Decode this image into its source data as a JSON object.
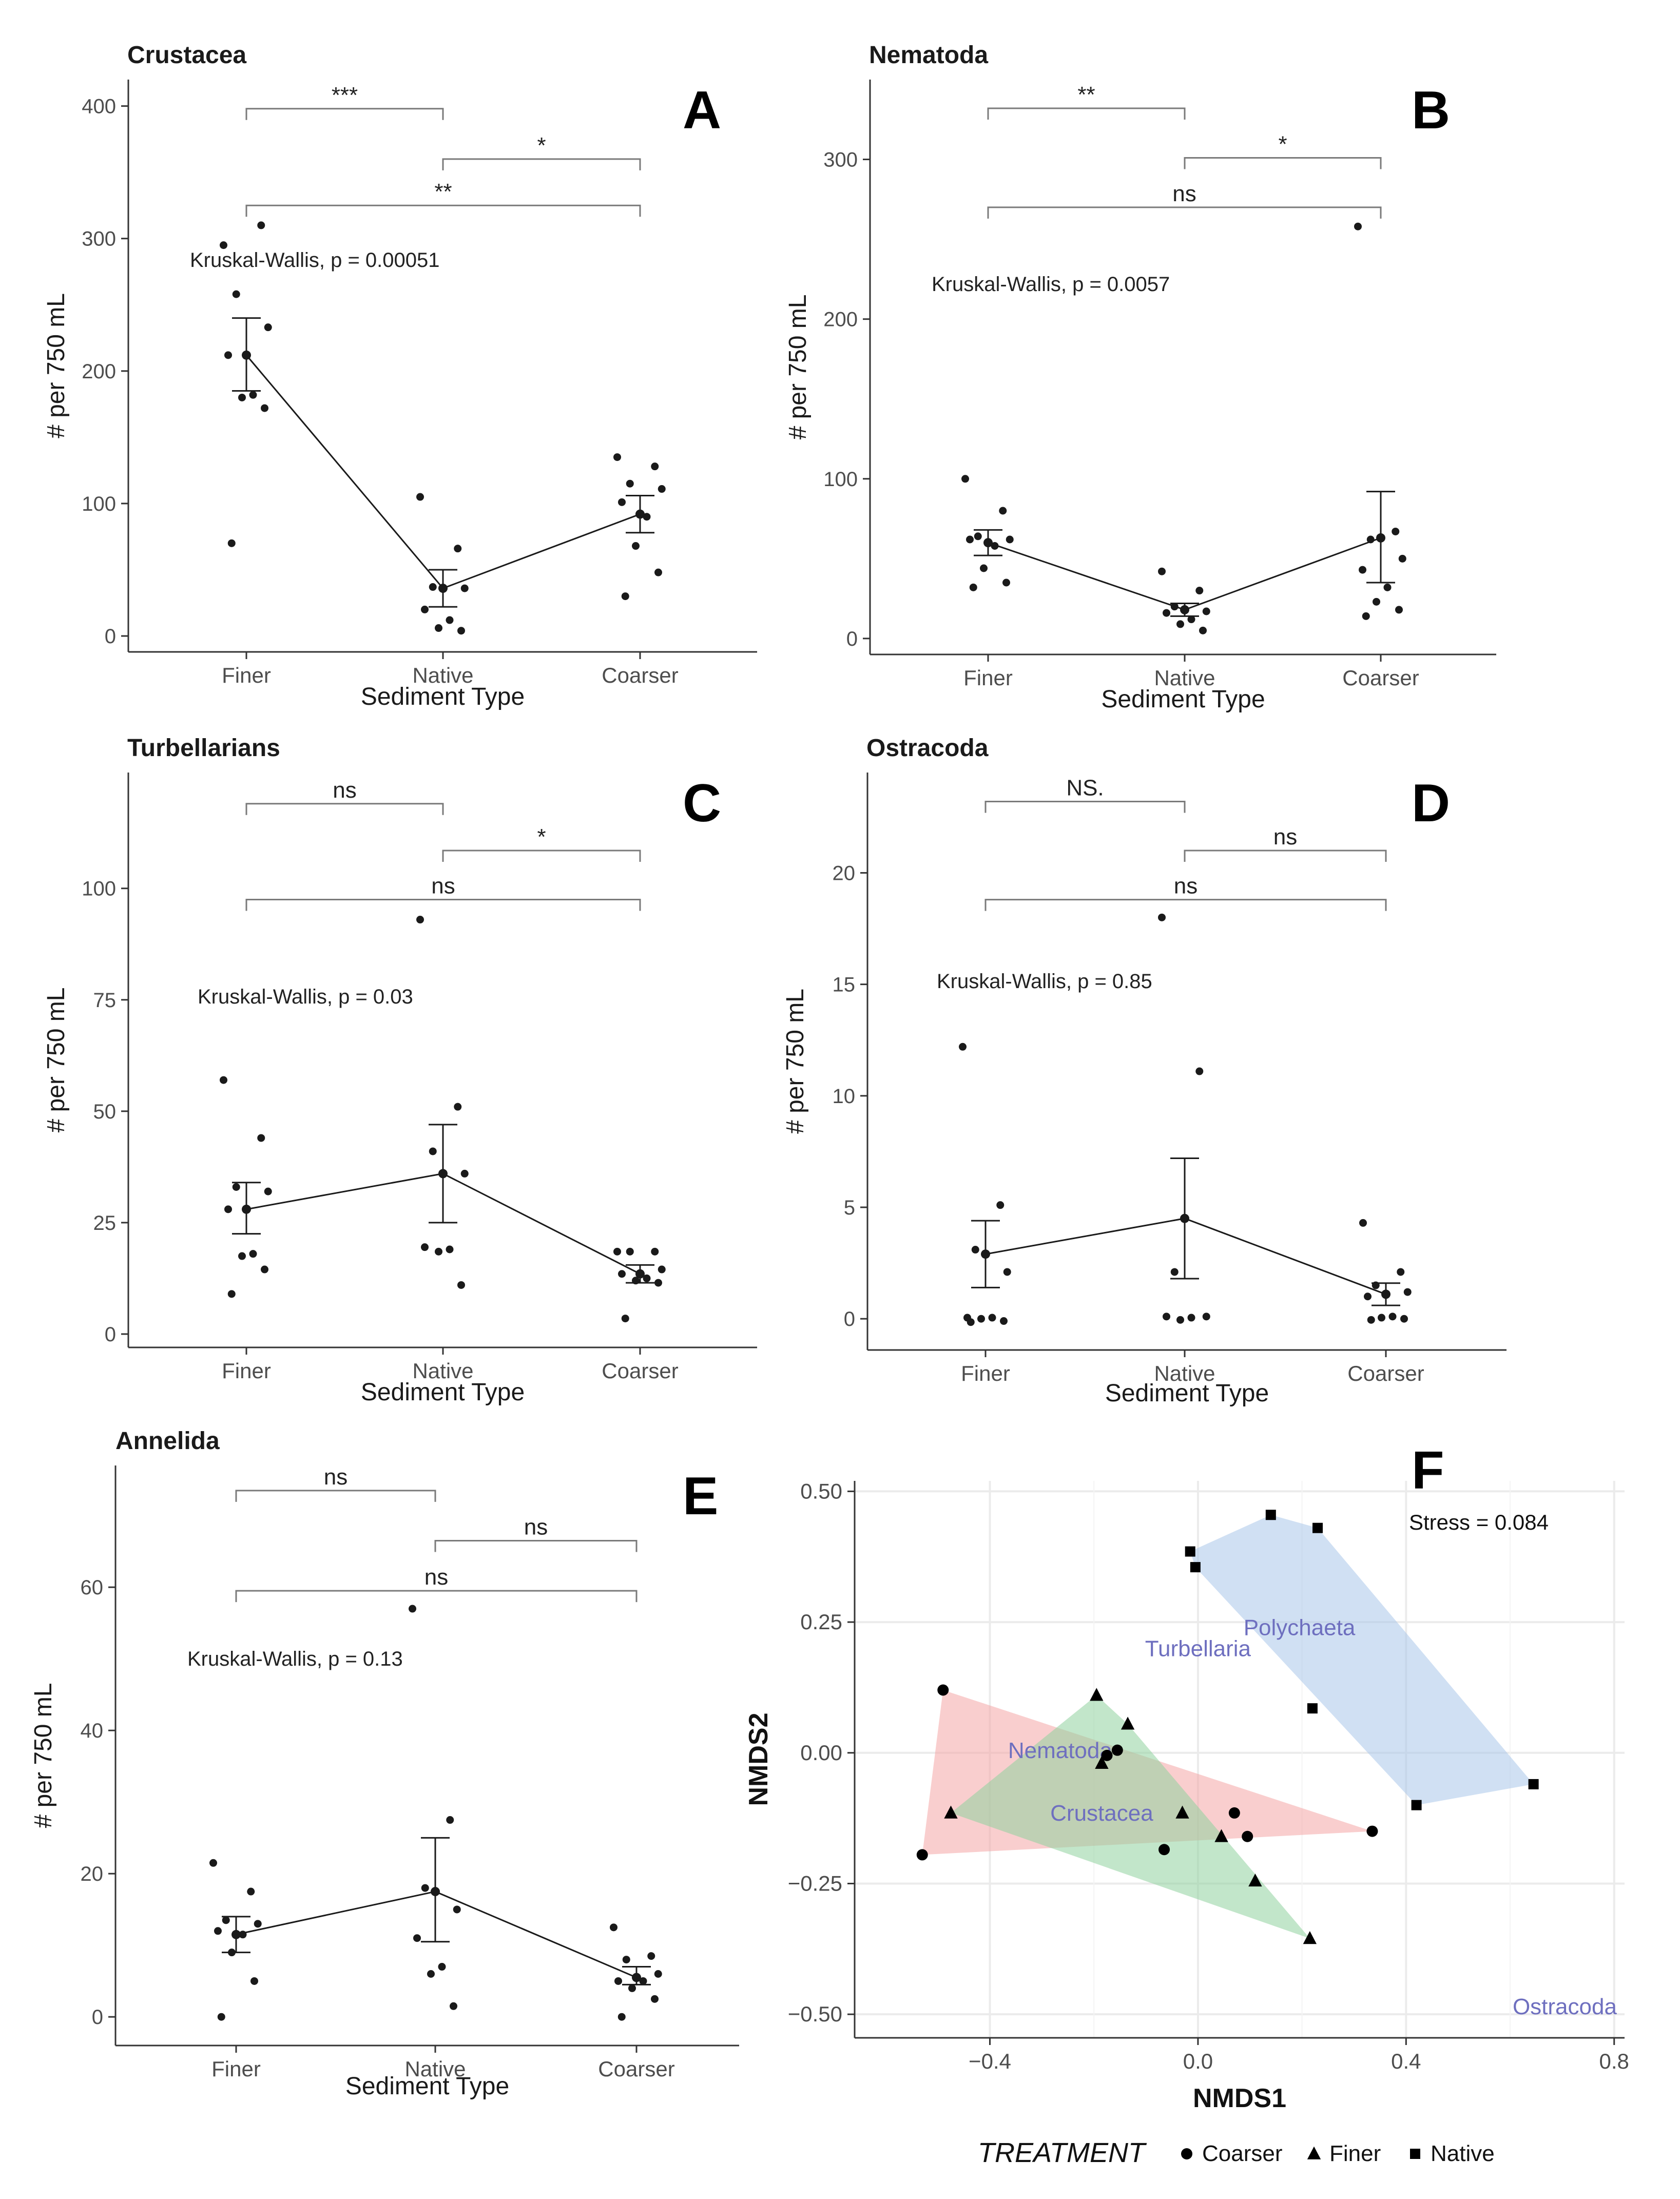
{
  "chart_data": [
    {
      "type": "scatter",
      "panel_letter": "A",
      "title": "Crustacea",
      "xlabel": "Sediment Type",
      "ylabel": "# per 750 mL",
      "categories": [
        "Finer",
        "Native",
        "Coarser"
      ],
      "ylim": [
        -12,
        420
      ],
      "yticks": [
        0,
        100,
        200,
        300,
        400
      ],
      "kruskal_wallis": "Kruskal-Wallis, p = 0.00051",
      "points": {
        "Finer": [
          295,
          310,
          258,
          233,
          212,
          182,
          180,
          172,
          70
        ],
        "Native": [
          105,
          66,
          37,
          36,
          20,
          12,
          6,
          4
        ],
        "Coarser": [
          135,
          128,
          115,
          111,
          101,
          90,
          68,
          48,
          30
        ]
      },
      "mean": [
        212,
        36,
        92
      ],
      "error": [
        [
          185,
          240
        ],
        [
          22,
          50
        ],
        [
          78,
          106
        ]
      ],
      "brackets": [
        {
          "from": "Finer",
          "to": "Native",
          "label": "***",
          "y": 398
        },
        {
          "from": "Native",
          "to": "Coarser",
          "label": "*",
          "y": 360
        },
        {
          "from": "Finer",
          "to": "Coarser",
          "label": "**",
          "y": 325
        }
      ]
    },
    {
      "type": "scatter",
      "panel_letter": "B",
      "title": "Nematoda",
      "xlabel": "Sediment Type",
      "ylabel": "# per 750 mL",
      "categories": [
        "Finer",
        "Native",
        "Coarser"
      ],
      "ylim": [
        -10,
        350
      ],
      "yticks": [
        0,
        100,
        200,
        300
      ],
      "kruskal_wallis": "Kruskal-Wallis, p = 0.0057",
      "points": {
        "Finer": [
          100,
          80,
          64,
          62,
          62,
          58,
          44,
          35,
          32
        ],
        "Native": [
          42,
          30,
          20,
          17,
          16,
          12,
          9,
          5
        ],
        "Coarser": [
          258,
          67,
          62,
          50,
          43,
          32,
          23,
          18,
          14
        ]
      },
      "mean": [
        60,
        18,
        63
      ],
      "error": [
        [
          52,
          68
        ],
        [
          14,
          22
        ],
        [
          35,
          92
        ]
      ],
      "brackets": [
        {
          "from": "Finer",
          "to": "Native",
          "label": "**",
          "y": 332
        },
        {
          "from": "Native",
          "to": "Coarser",
          "label": "*",
          "y": 301
        },
        {
          "from": "Finer",
          "to": "Coarser",
          "label": "ns",
          "y": 270
        }
      ]
    },
    {
      "type": "scatter",
      "panel_letter": "C",
      "title": "Turbellarians",
      "xlabel": "Sediment Type",
      "ylabel": "# per 750 mL",
      "categories": [
        "Finer",
        "Native",
        "Coarser"
      ],
      "ylim": [
        -3,
        126
      ],
      "yticks": [
        0,
        25,
        50,
        75,
        100
      ],
      "kruskal_wallis": "Kruskal-Wallis, p = 0.03",
      "points": {
        "Finer": [
          57,
          44,
          33,
          32,
          28,
          18,
          17.5,
          14.5,
          9
        ],
        "Native": [
          93,
          51,
          41,
          36,
          19.5,
          19,
          18.5,
          11
        ],
        "Coarser": [
          18.5,
          18.5,
          18.5,
          14.5,
          13.5,
          12.5,
          12,
          11.5,
          3.5
        ]
      },
      "mean": [
        28,
        36,
        13.5
      ],
      "error": [
        [
          22.5,
          34
        ],
        [
          25,
          47
        ],
        [
          11.5,
          15.5
        ]
      ],
      "brackets": [
        {
          "from": "Finer",
          "to": "Native",
          "label": "ns",
          "y": 119
        },
        {
          "from": "Native",
          "to": "Coarser",
          "label": "*",
          "y": 108.5
        },
        {
          "from": "Finer",
          "to": "Coarser",
          "label": "ns",
          "y": 97.5
        }
      ]
    },
    {
      "type": "scatter",
      "panel_letter": "D",
      "title": "Ostracoda",
      "xlabel": "Sediment Type",
      "ylabel": "# per 750 mL",
      "categories": [
        "Finer",
        "Native",
        "Coarser"
      ],
      "ylim": [
        -1.4,
        24.5
      ],
      "yticks": [
        0,
        5,
        10,
        15,
        20
      ],
      "kruskal_wallis": "Kruskal-Wallis, p = 0.85",
      "points": {
        "Finer": [
          12.2,
          5.1,
          3.1,
          2.1,
          0.05,
          0.05,
          0,
          -0.1,
          -0.15
        ],
        "Native": [
          18,
          11.1,
          2.1,
          0.1,
          0.1,
          0.05,
          -0.05
        ],
        "Coarser": [
          4.3,
          2.1,
          1.5,
          1.2,
          1.0,
          0.1,
          0.05,
          0.0,
          -0.05
        ]
      },
      "mean": [
        2.9,
        4.5,
        1.1
      ],
      "error": [
        [
          1.4,
          4.4
        ],
        [
          1.8,
          7.2
        ],
        [
          0.6,
          1.6
        ]
      ],
      "brackets": [
        {
          "from": "Finer",
          "to": "Native",
          "label": "NS.",
          "y": 23.2
        },
        {
          "from": "Native",
          "to": "Coarser",
          "label": "ns",
          "y": 21.0
        },
        {
          "from": "Finer",
          "to": "Coarser",
          "label": "ns",
          "y": 18.8
        }
      ]
    },
    {
      "type": "scatter",
      "panel_letter": "E",
      "title": "Annelida",
      "xlabel": "Sediment Type",
      "ylabel": "# per 750 mL",
      "categories": [
        "Finer",
        "Native",
        "Coarser"
      ],
      "ylim": [
        -4,
        77
      ],
      "yticks": [
        0,
        20,
        40,
        60
      ],
      "kruskal_wallis": "Kruskal-Wallis, p = 0.13",
      "points": {
        "Finer": [
          21.5,
          17.5,
          13.5,
          13,
          12,
          11.5,
          9,
          5,
          0
        ],
        "Native": [
          57,
          27.5,
          18,
          15,
          11,
          7,
          6,
          1.5
        ],
        "Coarser": [
          12.5,
          8.5,
          8,
          6,
          5,
          5,
          4,
          2.5,
          0
        ]
      },
      "mean": [
        11.5,
        17.5,
        5.5
      ],
      "error": [
        [
          9,
          14
        ],
        [
          10.5,
          25
        ],
        [
          4.5,
          7
        ]
      ],
      "brackets": [
        {
          "from": "Finer",
          "to": "Native",
          "label": "ns",
          "y": 73.5
        },
        {
          "from": "Native",
          "to": "Coarser",
          "label": "ns",
          "y": 66.5
        },
        {
          "from": "Finer",
          "to": "Coarser",
          "label": "ns",
          "y": 59.5
        }
      ]
    },
    {
      "type": "scatter",
      "panel_letter": "F",
      "title": "",
      "xlabel": "NMDS1",
      "ylabel": "NMDS2",
      "xlim": [
        -0.66,
        0.82
      ],
      "ylim": [
        -0.545,
        0.52
      ],
      "xticks": [
        -0.4,
        0.0,
        0.4,
        0.8
      ],
      "xtick_labels": [
        "−0.4",
        "0.0",
        "0.4",
        "0.8"
      ],
      "yticks": [
        -0.5,
        -0.25,
        0.0,
        0.25,
        0.5
      ],
      "ytick_labels": [
        "−0.50",
        "−0.25",
        "0.00",
        "0.25",
        "0.50"
      ],
      "stress": "Stress =  0.084",
      "legend": {
        "title": "TREATMENT",
        "placement": "bottom",
        "entries": [
          "Coarser",
          "Finer",
          "Native"
        ]
      },
      "series": [
        {
          "name": "Coarser",
          "marker": "circle",
          "fill": "#f4a6a6",
          "points": [
            [
              -0.49,
              0.12
            ],
            [
              -0.53,
              -0.195
            ],
            [
              0.335,
              -0.15
            ],
            [
              -0.155,
              0.005
            ],
            [
              -0.175,
              -0.005
            ],
            [
              -0.065,
              -0.185
            ],
            [
              0.07,
              -0.115
            ],
            [
              0.095,
              -0.16
            ]
          ],
          "hull": [
            [
              -0.49,
              0.12
            ],
            [
              0.335,
              -0.15
            ],
            [
              -0.53,
              -0.195
            ]
          ]
        },
        {
          "name": "Finer",
          "marker": "triangle",
          "fill": "#8fd19e",
          "points": [
            [
              -0.475,
              -0.115
            ],
            [
              -0.195,
              0.11
            ],
            [
              -0.135,
              0.055
            ],
            [
              -0.185,
              -0.02
            ],
            [
              -0.03,
              -0.115
            ],
            [
              0.045,
              -0.16
            ],
            [
              0.11,
              -0.245
            ],
            [
              0.215,
              -0.355
            ]
          ],
          "hull": [
            [
              -0.195,
              0.11
            ],
            [
              -0.135,
              0.055
            ],
            [
              0.215,
              -0.355
            ],
            [
              -0.475,
              -0.115
            ]
          ]
        },
        {
          "name": "Native",
          "marker": "square",
          "fill": "#a9c6ea",
          "points": [
            [
              -0.015,
              0.385
            ],
            [
              -0.005,
              0.355
            ],
            [
              0.14,
              0.455
            ],
            [
              0.23,
              0.43
            ],
            [
              0.22,
              0.085
            ],
            [
              0.42,
              -0.1
            ],
            [
              0.645,
              -0.06
            ]
          ],
          "hull": [
            [
              -0.015,
              0.385
            ],
            [
              0.14,
              0.455
            ],
            [
              0.23,
              0.43
            ],
            [
              0.645,
              -0.06
            ],
            [
              0.42,
              -0.1
            ],
            [
              -0.005,
              0.355
            ]
          ]
        }
      ],
      "species": [
        {
          "name": "Polychaeta",
          "x": 0.195,
          "y": 0.225
        },
        {
          "name": "Turbellaria",
          "x": 0.0,
          "y": 0.185
        },
        {
          "name": "Nematoda",
          "x": -0.265,
          "y": -0.01
        },
        {
          "name": "Crustacea",
          "x": -0.185,
          "y": -0.13
        },
        {
          "name": "Ostracoda",
          "x": 0.705,
          "y": -0.5
        }
      ]
    }
  ],
  "colors": {
    "ink": "#1a1a1a",
    "axis": "#333333",
    "bracket": "#7a7a7a",
    "species_label": "#6e6fbf",
    "grid": "#ebebeb"
  }
}
